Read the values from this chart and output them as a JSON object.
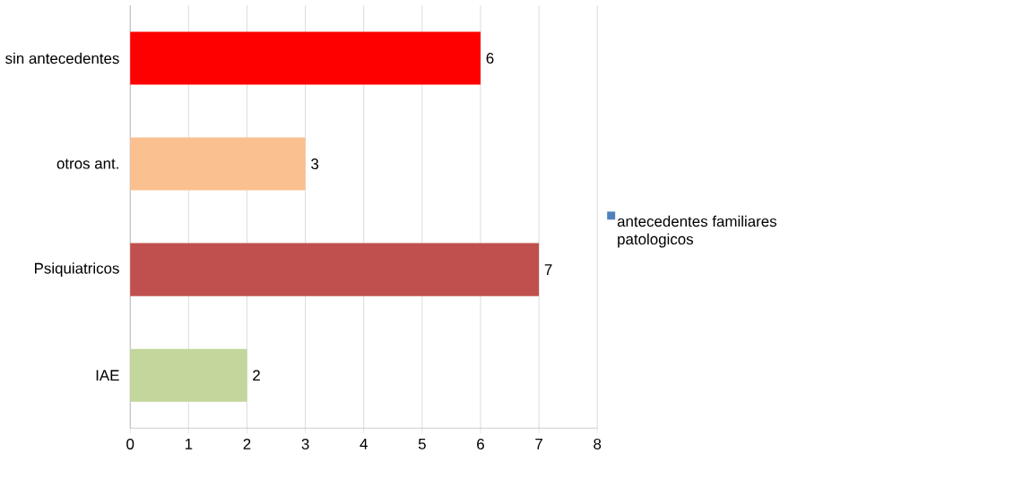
{
  "chart_data": {
    "type": "bar",
    "orientation": "horizontal",
    "categories": [
      "sin antecedentes",
      "otros ant.",
      "Psiquiatricos",
      "IAE"
    ],
    "series": [
      {
        "name": "antecedentes familiares patologicos",
        "color": "#4f81bd",
        "values": [
          6,
          3,
          7,
          2
        ],
        "colors": [
          "#ff0000",
          "#fac090",
          "#c0504d",
          "#c3d69b"
        ]
      }
    ],
    "xlim": [
      0,
      8
    ],
    "xticks": [
      0,
      1,
      2,
      3,
      4,
      5,
      6,
      7,
      8
    ],
    "grid": "x",
    "legend": "right",
    "data_labels": true
  }
}
